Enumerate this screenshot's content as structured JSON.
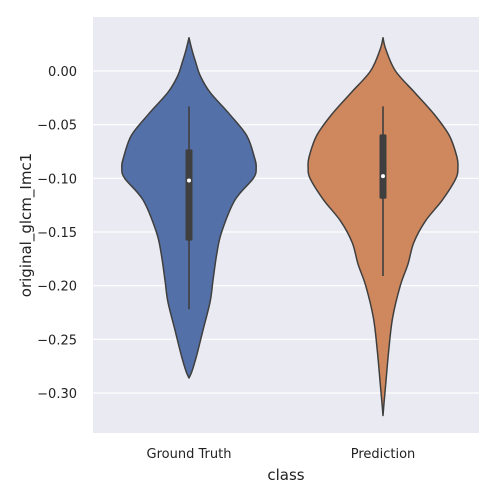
{
  "chart_data": {
    "type": "violin",
    "title": "",
    "xlabel": "class",
    "ylabel": "original_glcm_Imc1",
    "categories": [
      "Ground Truth",
      "Prediction"
    ],
    "ylim": [
      -0.34,
      0.05
    ],
    "yticks": [
      0.0,
      -0.05,
      -0.1,
      -0.15,
      -0.2,
      -0.25,
      -0.3
    ],
    "ytick_labels": [
      "0.00",
      "−0.05",
      "−0.10",
      "−0.15",
      "−0.20",
      "−0.25",
      "−0.30"
    ],
    "grid": true,
    "colors": {
      "Ground Truth": "#5470a8",
      "Prediction": "#cf875d",
      "background": "#eaeaf2",
      "outline": "#3f3f3f"
    },
    "violins": [
      {
        "name": "Ground Truth",
        "box": {
          "whisker_low": -0.222,
          "q1": -0.158,
          "median": -0.102,
          "q3": -0.073,
          "whisker_high": -0.033
        },
        "density_profile": [
          [
            0.031,
            0.0
          ],
          [
            0.02,
            0.03
          ],
          [
            0.008,
            0.07
          ],
          [
            -0.005,
            0.12
          ],
          [
            -0.02,
            0.22
          ],
          [
            -0.04,
            0.42
          ],
          [
            -0.06,
            0.6
          ],
          [
            -0.08,
            0.68
          ],
          [
            -0.09,
            0.7
          ],
          [
            -0.1,
            0.67
          ],
          [
            -0.12,
            0.48
          ],
          [
            -0.15,
            0.34
          ],
          [
            -0.17,
            0.29
          ],
          [
            -0.195,
            0.25
          ],
          [
            -0.215,
            0.22
          ],
          [
            -0.24,
            0.15
          ],
          [
            -0.265,
            0.08
          ],
          [
            -0.28,
            0.03
          ],
          [
            -0.286,
            0.0
          ]
        ]
      },
      {
        "name": "Prediction",
        "box": {
          "whisker_low": -0.191,
          "q1": -0.119,
          "median": -0.098,
          "q3": -0.059,
          "whisker_high": -0.033
        },
        "density_profile": [
          [
            0.031,
            0.0
          ],
          [
            0.02,
            0.03
          ],
          [
            0.0,
            0.13
          ],
          [
            -0.02,
            0.33
          ],
          [
            -0.04,
            0.53
          ],
          [
            -0.06,
            0.69
          ],
          [
            -0.08,
            0.77
          ],
          [
            -0.09,
            0.78
          ],
          [
            -0.1,
            0.76
          ],
          [
            -0.12,
            0.62
          ],
          [
            -0.14,
            0.44
          ],
          [
            -0.16,
            0.32
          ],
          [
            -0.18,
            0.26
          ],
          [
            -0.2,
            0.18
          ],
          [
            -0.23,
            0.1
          ],
          [
            -0.26,
            0.06
          ],
          [
            -0.29,
            0.03
          ],
          [
            -0.31,
            0.01
          ],
          [
            -0.321,
            0.0
          ]
        ]
      }
    ]
  }
}
